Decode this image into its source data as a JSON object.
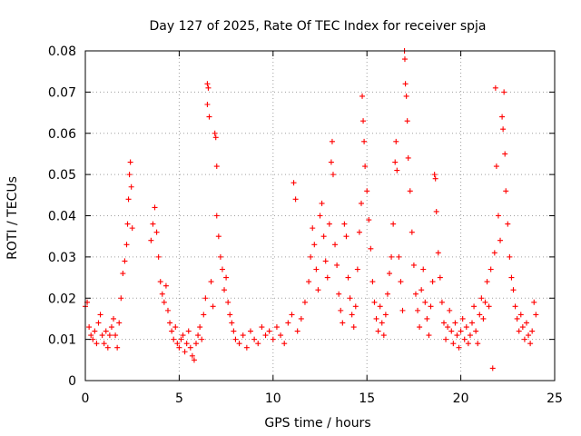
{
  "chart_data": {
    "type": "scatter",
    "title": "Day 127 of 2025, Rate Of TEC Index for receiver spja",
    "xlabel": "GPS time / hours",
    "ylabel": "ROTI / TECUs",
    "xlim": [
      0,
      25
    ],
    "ylim": [
      0,
      0.08
    ],
    "xticks": [
      0,
      5,
      10,
      15,
      20,
      25
    ],
    "xtick_labels": [
      "0",
      "5",
      "10",
      "15",
      "20",
      "25"
    ],
    "yticks": [
      0,
      0.01,
      0.02,
      0.03,
      0.04,
      0.05,
      0.06,
      0.07,
      0.08
    ],
    "ytick_labels": [
      "0",
      "0.01",
      "0.02",
      "0.03",
      "0.04",
      "0.05",
      "0.06",
      "0.07",
      "0.08"
    ],
    "grid": true,
    "marker": "plus",
    "color": "#ff0000",
    "series": [
      {
        "name": "ROTI",
        "points": [
          [
            0.0,
            0.018
          ],
          [
            0.1,
            0.019
          ],
          [
            0.2,
            0.013
          ],
          [
            0.3,
            0.011
          ],
          [
            0.4,
            0.01
          ],
          [
            0.5,
            0.012
          ],
          [
            0.6,
            0.009
          ],
          [
            0.7,
            0.014
          ],
          [
            0.8,
            0.016
          ],
          [
            0.9,
            0.011
          ],
          [
            1.0,
            0.009
          ],
          [
            1.1,
            0.012
          ],
          [
            1.2,
            0.008
          ],
          [
            1.3,
            0.011
          ],
          [
            1.4,
            0.013
          ],
          [
            1.5,
            0.015
          ],
          [
            1.6,
            0.011
          ],
          [
            1.7,
            0.008
          ],
          [
            1.8,
            0.014
          ],
          [
            1.9,
            0.02
          ],
          [
            2.0,
            0.026
          ],
          [
            2.1,
            0.029
          ],
          [
            2.2,
            0.033
          ],
          [
            2.25,
            0.038
          ],
          [
            2.3,
            0.044
          ],
          [
            2.35,
            0.05
          ],
          [
            2.4,
            0.053
          ],
          [
            2.45,
            0.047
          ],
          [
            2.5,
            0.037
          ],
          [
            3.5,
            0.034
          ],
          [
            3.6,
            0.038
          ],
          [
            3.7,
            0.042
          ],
          [
            3.8,
            0.036
          ],
          [
            3.9,
            0.03
          ],
          [
            4.0,
            0.024
          ],
          [
            4.1,
            0.021
          ],
          [
            4.2,
            0.019
          ],
          [
            4.3,
            0.023
          ],
          [
            4.4,
            0.017
          ],
          [
            4.5,
            0.014
          ],
          [
            4.6,
            0.012
          ],
          [
            4.7,
            0.01
          ],
          [
            4.8,
            0.013
          ],
          [
            4.9,
            0.009
          ],
          [
            5.0,
            0.008
          ],
          [
            5.1,
            0.01
          ],
          [
            5.2,
            0.011
          ],
          [
            5.3,
            0.007
          ],
          [
            5.4,
            0.009
          ],
          [
            5.5,
            0.012
          ],
          [
            5.6,
            0.008
          ],
          [
            5.7,
            0.006
          ],
          [
            5.8,
            0.005
          ],
          [
            5.9,
            0.009
          ],
          [
            6.0,
            0.011
          ],
          [
            6.1,
            0.013
          ],
          [
            6.2,
            0.01
          ],
          [
            6.3,
            0.016
          ],
          [
            6.4,
            0.02
          ],
          [
            6.5,
            0.072
          ],
          [
            6.55,
            0.071
          ],
          [
            6.5,
            0.067
          ],
          [
            6.6,
            0.064
          ],
          [
            6.7,
            0.024
          ],
          [
            6.8,
            0.018
          ],
          [
            6.9,
            0.06
          ],
          [
            6.95,
            0.059
          ],
          [
            7.0,
            0.052
          ],
          [
            7.0,
            0.04
          ],
          [
            7.1,
            0.035
          ],
          [
            7.2,
            0.03
          ],
          [
            7.3,
            0.027
          ],
          [
            7.4,
            0.022
          ],
          [
            7.5,
            0.025
          ],
          [
            7.6,
            0.019
          ],
          [
            7.7,
            0.016
          ],
          [
            7.8,
            0.014
          ],
          [
            7.9,
            0.012
          ],
          [
            8.0,
            0.01
          ],
          [
            8.2,
            0.009
          ],
          [
            8.4,
            0.011
          ],
          [
            8.6,
            0.008
          ],
          [
            8.8,
            0.012
          ],
          [
            9.0,
            0.01
          ],
          [
            9.2,
            0.009
          ],
          [
            9.4,
            0.013
          ],
          [
            9.6,
            0.011
          ],
          [
            9.8,
            0.012
          ],
          [
            10.0,
            0.01
          ],
          [
            10.2,
            0.013
          ],
          [
            10.4,
            0.011
          ],
          [
            10.6,
            0.009
          ],
          [
            10.8,
            0.014
          ],
          [
            11.0,
            0.016
          ],
          [
            11.1,
            0.048
          ],
          [
            11.2,
            0.044
          ],
          [
            11.3,
            0.012
          ],
          [
            11.5,
            0.015
          ],
          [
            11.7,
            0.019
          ],
          [
            11.9,
            0.024
          ],
          [
            12.0,
            0.03
          ],
          [
            12.1,
            0.037
          ],
          [
            12.2,
            0.033
          ],
          [
            12.3,
            0.027
          ],
          [
            12.4,
            0.022
          ],
          [
            12.5,
            0.04
          ],
          [
            12.6,
            0.043
          ],
          [
            12.7,
            0.035
          ],
          [
            12.8,
            0.029
          ],
          [
            12.9,
            0.025
          ],
          [
            13.0,
            0.038
          ],
          [
            13.1,
            0.053
          ],
          [
            13.15,
            0.058
          ],
          [
            13.2,
            0.05
          ],
          [
            13.3,
            0.033
          ],
          [
            13.4,
            0.028
          ],
          [
            13.5,
            0.021
          ],
          [
            13.6,
            0.017
          ],
          [
            13.7,
            0.014
          ],
          [
            13.8,
            0.038
          ],
          [
            13.9,
            0.035
          ],
          [
            14.0,
            0.025
          ],
          [
            14.1,
            0.02
          ],
          [
            14.2,
            0.016
          ],
          [
            14.3,
            0.013
          ],
          [
            14.4,
            0.018
          ],
          [
            14.5,
            0.027
          ],
          [
            14.6,
            0.036
          ],
          [
            14.7,
            0.043
          ],
          [
            14.75,
            0.069
          ],
          [
            14.8,
            0.063
          ],
          [
            14.85,
            0.058
          ],
          [
            14.9,
            0.052
          ],
          [
            15.0,
            0.046
          ],
          [
            15.1,
            0.039
          ],
          [
            15.2,
            0.032
          ],
          [
            15.3,
            0.024
          ],
          [
            15.4,
            0.019
          ],
          [
            15.5,
            0.015
          ],
          [
            15.6,
            0.012
          ],
          [
            15.7,
            0.018
          ],
          [
            15.8,
            0.014
          ],
          [
            15.9,
            0.011
          ],
          [
            16.0,
            0.016
          ],
          [
            16.1,
            0.021
          ],
          [
            16.2,
            0.026
          ],
          [
            16.3,
            0.03
          ],
          [
            16.4,
            0.038
          ],
          [
            16.5,
            0.053
          ],
          [
            16.55,
            0.058
          ],
          [
            16.6,
            0.051
          ],
          [
            16.7,
            0.03
          ],
          [
            16.8,
            0.024
          ],
          [
            16.9,
            0.017
          ],
          [
            17.0,
            0.08
          ],
          [
            17.02,
            0.078
          ],
          [
            17.05,
            0.072
          ],
          [
            17.1,
            0.069
          ],
          [
            17.15,
            0.063
          ],
          [
            17.2,
            0.054
          ],
          [
            17.3,
            0.046
          ],
          [
            17.4,
            0.036
          ],
          [
            17.5,
            0.028
          ],
          [
            17.6,
            0.021
          ],
          [
            17.7,
            0.017
          ],
          [
            17.8,
            0.013
          ],
          [
            17.9,
            0.022
          ],
          [
            18.0,
            0.027
          ],
          [
            18.1,
            0.019
          ],
          [
            18.2,
            0.015
          ],
          [
            18.3,
            0.011
          ],
          [
            18.4,
            0.018
          ],
          [
            18.5,
            0.024
          ],
          [
            18.6,
            0.05
          ],
          [
            18.65,
            0.049
          ],
          [
            18.7,
            0.041
          ],
          [
            18.8,
            0.031
          ],
          [
            18.9,
            0.025
          ],
          [
            19.0,
            0.019
          ],
          [
            19.1,
            0.014
          ],
          [
            19.2,
            0.01
          ],
          [
            19.3,
            0.013
          ],
          [
            19.4,
            0.017
          ],
          [
            19.5,
            0.012
          ],
          [
            19.6,
            0.009
          ],
          [
            19.7,
            0.014
          ],
          [
            19.8,
            0.011
          ],
          [
            19.9,
            0.008
          ],
          [
            20.0,
            0.012
          ],
          [
            20.1,
            0.015
          ],
          [
            20.2,
            0.01
          ],
          [
            20.3,
            0.013
          ],
          [
            20.4,
            0.009
          ],
          [
            20.5,
            0.011
          ],
          [
            20.6,
            0.014
          ],
          [
            20.7,
            0.018
          ],
          [
            20.8,
            0.012
          ],
          [
            20.9,
            0.009
          ],
          [
            21.0,
            0.016
          ],
          [
            21.1,
            0.02
          ],
          [
            21.2,
            0.015
          ],
          [
            21.3,
            0.019
          ],
          [
            21.4,
            0.024
          ],
          [
            21.5,
            0.018
          ],
          [
            21.6,
            0.027
          ],
          [
            21.7,
            0.003
          ],
          [
            21.8,
            0.031
          ],
          [
            21.85,
            0.071
          ],
          [
            21.9,
            0.052
          ],
          [
            22.0,
            0.04
          ],
          [
            22.1,
            0.034
          ],
          [
            22.2,
            0.064
          ],
          [
            22.25,
            0.061
          ],
          [
            22.3,
            0.07
          ],
          [
            22.35,
            0.055
          ],
          [
            22.4,
            0.046
          ],
          [
            22.5,
            0.038
          ],
          [
            22.6,
            0.03
          ],
          [
            22.7,
            0.025
          ],
          [
            22.8,
            0.022
          ],
          [
            22.9,
            0.018
          ],
          [
            23.0,
            0.015
          ],
          [
            23.1,
            0.012
          ],
          [
            23.2,
            0.016
          ],
          [
            23.3,
            0.013
          ],
          [
            23.4,
            0.01
          ],
          [
            23.5,
            0.014
          ],
          [
            23.6,
            0.011
          ],
          [
            23.7,
            0.009
          ],
          [
            23.8,
            0.012
          ],
          [
            23.9,
            0.019
          ],
          [
            24.0,
            0.016
          ]
        ]
      }
    ]
  }
}
